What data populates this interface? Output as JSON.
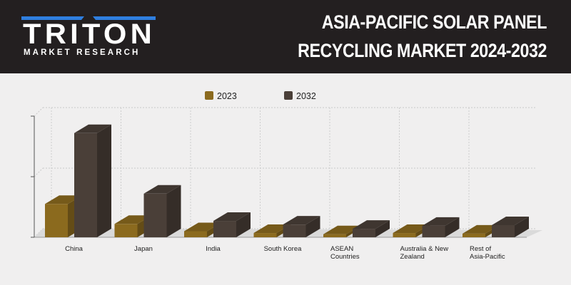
{
  "brand": {
    "name": "TRITON",
    "tagline": "MARKET RESEARCH",
    "accent": "#2f7fe0"
  },
  "title": {
    "line1": "ASIA-PACIFIC SOLAR PANEL",
    "line2": "RECYCLING MARKET 2024-2032"
  },
  "chart_data": {
    "type": "bar",
    "title": "",
    "xlabel": "",
    "ylabel": "",
    "ylim": [
      0,
      2
    ],
    "grid": true,
    "legend": "top-center",
    "categories": [
      [
        "China"
      ],
      [
        "Japan"
      ],
      [
        "India"
      ],
      [
        "South Korea"
      ],
      [
        "ASEAN",
        "Countries"
      ],
      [
        "Australia & New",
        "Zealand"
      ],
      [
        "Rest of",
        "Asia-Pacific"
      ]
    ],
    "series": [
      {
        "name": "2023",
        "color": "#8b6a1e",
        "values": [
          0.55,
          0.22,
          0.1,
          0.07,
          0.05,
          0.07,
          0.06
        ]
      },
      {
        "name": "2032",
        "color": "#4a3f38",
        "values": [
          1.72,
          0.72,
          0.27,
          0.21,
          0.14,
          0.19,
          0.2
        ]
      }
    ]
  }
}
